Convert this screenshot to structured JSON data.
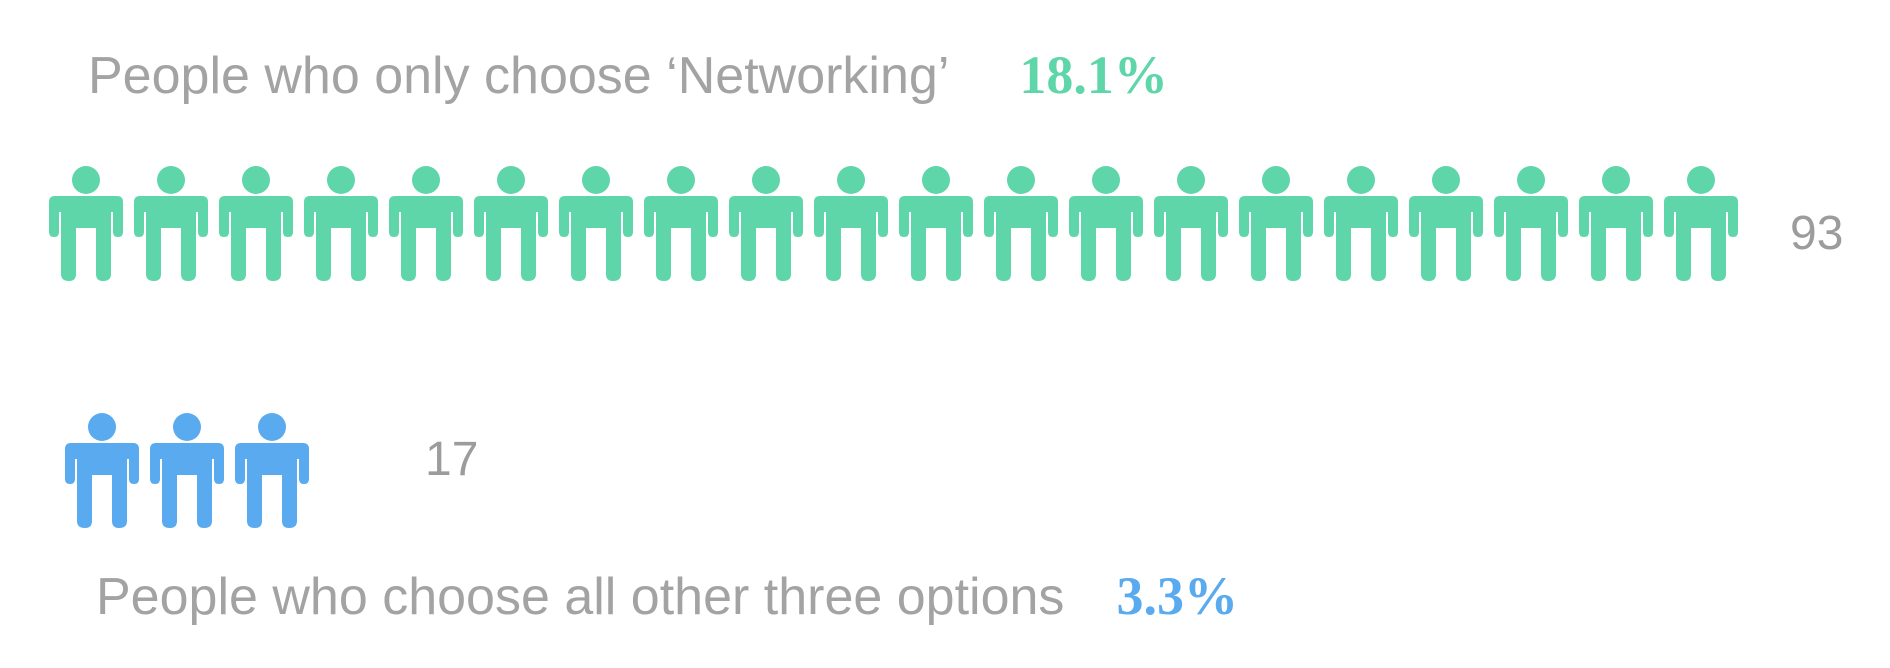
{
  "chart_data": {
    "type": "pictogram",
    "rows": [
      {
        "label": "People who only choose ‘Networking’",
        "percent_text": "18.1%",
        "count": 93,
        "count_text": "93",
        "icons_shown": 20,
        "color": "#5fd6a9"
      },
      {
        "label": "People who choose all other three options",
        "percent_text": "3.3%",
        "count": 17,
        "count_text": "17",
        "icons_shown": 3.65,
        "color": "#5aaaf0"
      }
    ]
  }
}
